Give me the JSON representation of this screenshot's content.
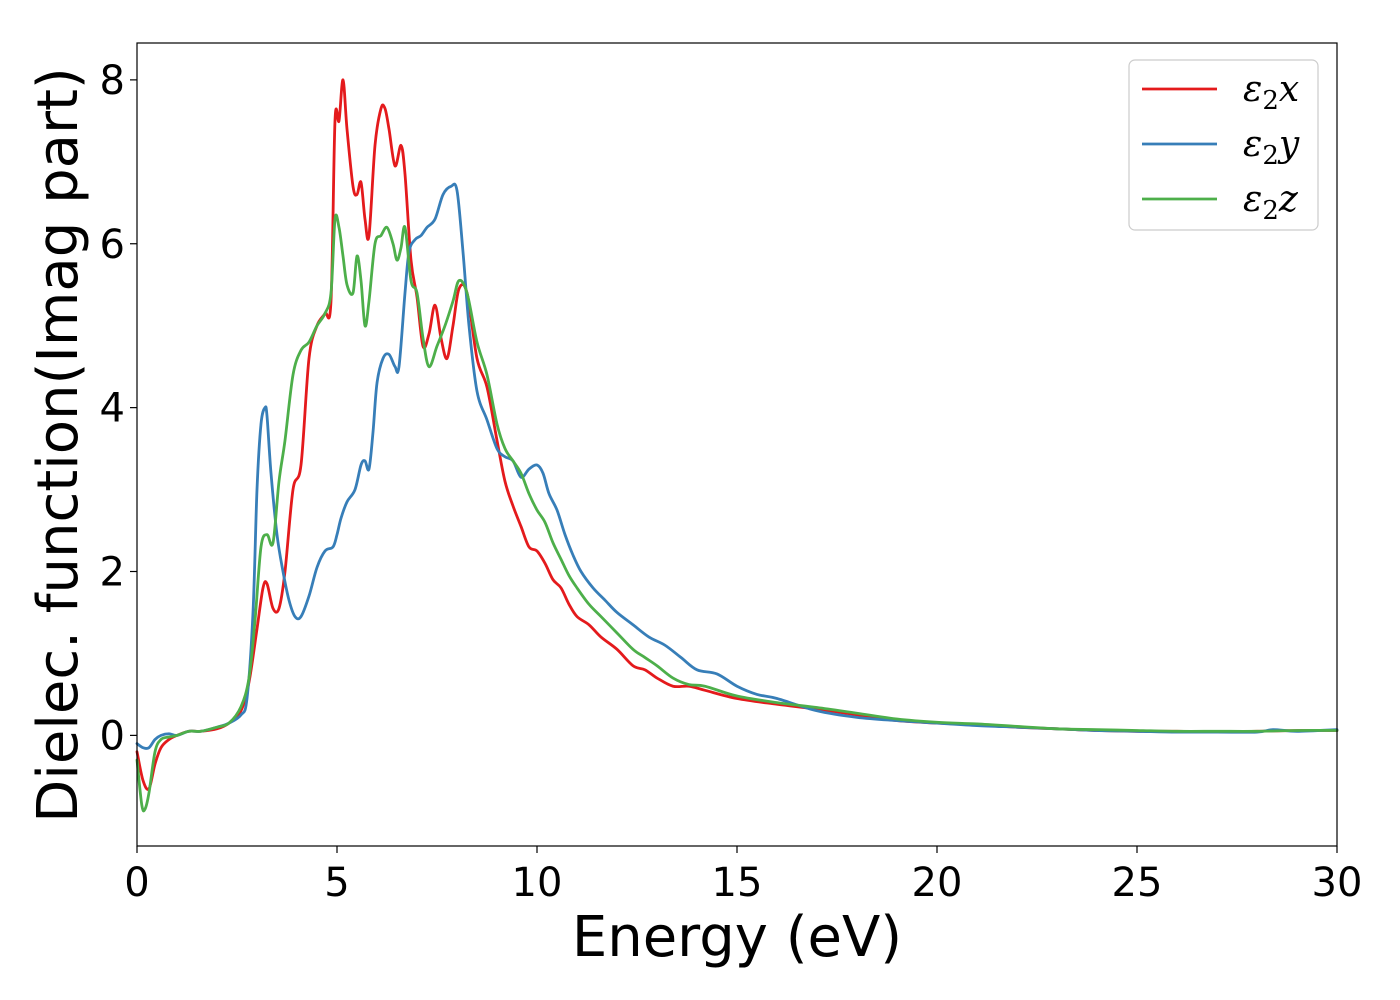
{
  "chart_data": {
    "type": "line",
    "title": "",
    "xlabel": "Energy (eV)",
    "ylabel": "Dielec. function(Imag part)",
    "xlim": [
      0,
      30
    ],
    "ylim": [
      -1.35,
      8.45
    ],
    "xticks": [
      0,
      5,
      10,
      15,
      20,
      25,
      30
    ],
    "yticks": [
      0,
      2,
      4,
      6,
      8
    ],
    "grid": false,
    "legend_position": "top-right",
    "series": [
      {
        "name": "ε2x",
        "legend": {
          "base": "ε",
          "sub": "2",
          "var": "x"
        },
        "color": "#e41a1c",
        "x": [
          0,
          0.15,
          0.3,
          0.45,
          0.6,
          0.8,
          1.0,
          1.3,
          1.6,
          2.0,
          2.3,
          2.6,
          2.8,
          3.0,
          3.15,
          3.25,
          3.4,
          3.55,
          3.7,
          3.9,
          4.1,
          4.3,
          4.5,
          4.7,
          4.85,
          4.95,
          5.05,
          5.15,
          5.25,
          5.4,
          5.5,
          5.6,
          5.7,
          5.8,
          5.95,
          6.1,
          6.2,
          6.3,
          6.45,
          6.6,
          6.7,
          6.85,
          7.0,
          7.15,
          7.3,
          7.45,
          7.6,
          7.75,
          7.9,
          8.05,
          8.25,
          8.5,
          8.75,
          9.0,
          9.2,
          9.4,
          9.6,
          9.8,
          10.0,
          10.2,
          10.4,
          10.6,
          10.8,
          11.0,
          11.3,
          11.6,
          12.0,
          12.4,
          12.7,
          13.0,
          13.4,
          13.8,
          14.2,
          15.0,
          16.0,
          17.0,
          18.0,
          19.0,
          20.0,
          21.0,
          22.0,
          23.0,
          24.0,
          25.0,
          26.0,
          27.0,
          28.0,
          29.0,
          30.0
        ],
        "y": [
          -0.2,
          -0.55,
          -0.65,
          -0.35,
          -0.15,
          -0.05,
          0.0,
          0.05,
          0.05,
          0.08,
          0.15,
          0.3,
          0.65,
          1.3,
          1.8,
          1.85,
          1.55,
          1.55,
          2.0,
          3.0,
          3.3,
          4.6,
          5.0,
          5.15,
          5.3,
          7.5,
          7.5,
          8.0,
          7.4,
          6.7,
          6.6,
          6.75,
          6.3,
          6.1,
          7.2,
          7.65,
          7.65,
          7.4,
          6.95,
          7.2,
          6.85,
          5.8,
          5.35,
          4.75,
          4.9,
          5.25,
          4.85,
          4.6,
          5.0,
          5.45,
          5.4,
          4.6,
          4.25,
          3.6,
          3.1,
          2.8,
          2.55,
          2.3,
          2.25,
          2.1,
          1.9,
          1.8,
          1.6,
          1.45,
          1.35,
          1.2,
          1.05,
          0.85,
          0.8,
          0.7,
          0.6,
          0.6,
          0.55,
          0.45,
          0.38,
          0.32,
          0.25,
          0.18,
          0.15,
          0.13,
          0.1,
          0.08,
          0.06,
          0.05,
          0.05,
          0.04,
          0.05,
          0.06,
          0.06
        ]
      },
      {
        "name": "ε2y",
        "legend": {
          "base": "ε",
          "sub": "2",
          "var": "y"
        },
        "color": "#377eb8",
        "x": [
          0,
          0.15,
          0.3,
          0.45,
          0.6,
          0.8,
          1.0,
          1.3,
          1.6,
          2.0,
          2.3,
          2.6,
          2.75,
          2.9,
          3.0,
          3.1,
          3.2,
          3.25,
          3.35,
          3.5,
          3.65,
          3.8,
          3.95,
          4.1,
          4.3,
          4.5,
          4.7,
          4.9,
          5.0,
          5.1,
          5.25,
          5.45,
          5.6,
          5.7,
          5.8,
          5.9,
          6.0,
          6.15,
          6.3,
          6.45,
          6.55,
          6.7,
          6.8,
          6.95,
          7.1,
          7.25,
          7.45,
          7.65,
          7.85,
          8.0,
          8.15,
          8.3,
          8.5,
          8.75,
          9.0,
          9.2,
          9.4,
          9.6,
          9.8,
          10.0,
          10.15,
          10.3,
          10.5,
          10.7,
          10.9,
          11.1,
          11.4,
          11.7,
          12.0,
          12.4,
          12.8,
          13.2,
          13.6,
          14.0,
          14.5,
          15.0,
          15.5,
          16.0,
          17.0,
          18.0,
          19.0,
          20.0,
          21.0,
          22.0,
          23.0,
          24.0,
          25.0,
          26.0,
          27.0,
          28.0,
          28.4,
          29.0,
          30.0
        ],
        "y": [
          -0.1,
          -0.15,
          -0.15,
          -0.05,
          0.0,
          0.02,
          0.0,
          0.05,
          0.05,
          0.1,
          0.15,
          0.25,
          0.45,
          1.5,
          3.0,
          3.8,
          4.0,
          3.9,
          3.2,
          2.45,
          2.0,
          1.65,
          1.45,
          1.45,
          1.7,
          2.05,
          2.25,
          2.3,
          2.45,
          2.65,
          2.85,
          3.0,
          3.3,
          3.35,
          3.25,
          3.7,
          4.3,
          4.6,
          4.65,
          4.5,
          4.5,
          5.4,
          5.9,
          6.05,
          6.1,
          6.2,
          6.3,
          6.6,
          6.7,
          6.65,
          5.9,
          5.0,
          4.2,
          3.85,
          3.5,
          3.4,
          3.35,
          3.15,
          3.25,
          3.3,
          3.2,
          2.95,
          2.75,
          2.45,
          2.2,
          2.0,
          1.8,
          1.65,
          1.5,
          1.35,
          1.2,
          1.1,
          0.95,
          0.8,
          0.75,
          0.6,
          0.5,
          0.45,
          0.3,
          0.22,
          0.18,
          0.15,
          0.12,
          0.1,
          0.08,
          0.06,
          0.05,
          0.04,
          0.04,
          0.04,
          0.07,
          0.05,
          0.07
        ]
      },
      {
        "name": "ε2z",
        "legend": {
          "base": "ε",
          "sub": "2",
          "var": "z"
        },
        "color": "#4daf4a",
        "x": [
          0,
          0.12,
          0.2,
          0.3,
          0.45,
          0.6,
          0.8,
          1.0,
          1.3,
          1.6,
          2.0,
          2.3,
          2.6,
          2.8,
          2.95,
          3.1,
          3.25,
          3.4,
          3.55,
          3.7,
          3.9,
          4.1,
          4.3,
          4.5,
          4.7,
          4.85,
          4.95,
          5.05,
          5.15,
          5.25,
          5.4,
          5.5,
          5.6,
          5.7,
          5.8,
          5.95,
          6.1,
          6.25,
          6.4,
          6.5,
          6.6,
          6.7,
          6.85,
          7.0,
          7.15,
          7.3,
          7.5,
          7.7,
          7.9,
          8.05,
          8.25,
          8.5,
          8.75,
          9.0,
          9.2,
          9.4,
          9.6,
          9.8,
          10.0,
          10.2,
          10.4,
          10.6,
          10.8,
          11.0,
          11.3,
          11.6,
          12.0,
          12.4,
          12.7,
          13.0,
          13.4,
          13.8,
          14.2,
          15.0,
          16.0,
          17.0,
          18.0,
          19.0,
          20.0,
          21.0,
          22.0,
          23.0,
          24.0,
          25.0,
          26.0,
          27.0,
          28.0,
          29.0,
          30.0
        ],
        "y": [
          -0.3,
          -0.85,
          -0.9,
          -0.7,
          -0.2,
          -0.05,
          -0.02,
          0.0,
          0.05,
          0.05,
          0.1,
          0.15,
          0.35,
          0.7,
          1.4,
          2.3,
          2.45,
          2.35,
          3.1,
          3.6,
          4.4,
          4.7,
          4.8,
          5.0,
          5.15,
          5.4,
          6.3,
          6.2,
          5.85,
          5.5,
          5.4,
          5.85,
          5.55,
          5.0,
          5.3,
          6.0,
          6.1,
          6.2,
          6.0,
          5.8,
          5.95,
          6.2,
          5.55,
          5.4,
          4.85,
          4.5,
          4.75,
          5.0,
          5.3,
          5.55,
          5.4,
          4.8,
          4.4,
          3.8,
          3.5,
          3.35,
          3.2,
          2.95,
          2.75,
          2.6,
          2.35,
          2.15,
          1.95,
          1.8,
          1.6,
          1.45,
          1.25,
          1.05,
          0.95,
          0.85,
          0.7,
          0.62,
          0.6,
          0.48,
          0.4,
          0.34,
          0.27,
          0.2,
          0.16,
          0.14,
          0.11,
          0.08,
          0.07,
          0.06,
          0.05,
          0.05,
          0.05,
          0.06,
          0.06
        ]
      }
    ]
  }
}
